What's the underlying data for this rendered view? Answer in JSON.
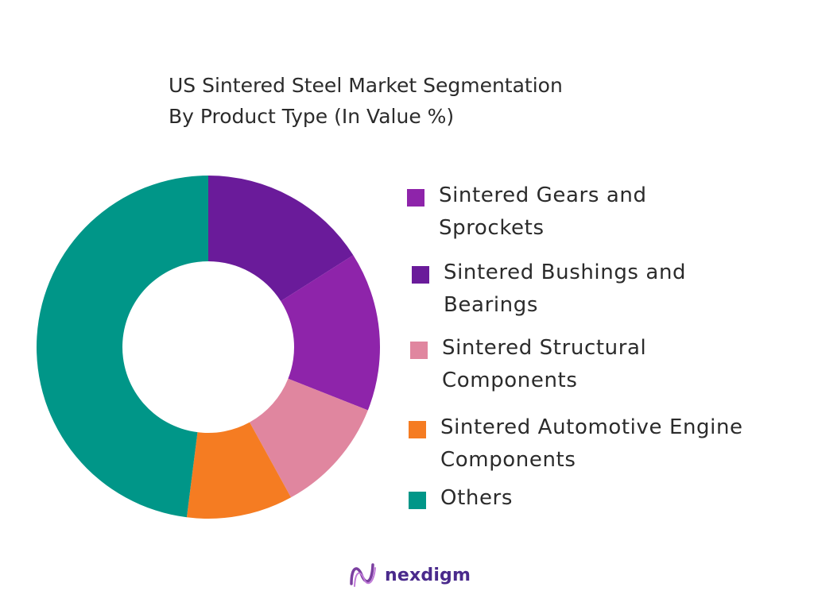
{
  "chart_data": {
    "type": "pie",
    "title_lines": [
      "US Sintered Steel Market Segmentation",
      "By Product Type (In Value %)"
    ],
    "categories": [
      "Sintered Gears and Sprockets",
      "Sintered Bushings and Bearings",
      "Sintered Structural Components",
      "Sintered Automotive Engine Components",
      "Others"
    ],
    "values": [
      15,
      16,
      11,
      10,
      48
    ],
    "colors": [
      "#8e24aa",
      "#6a1b9a",
      "#e0869f",
      "#f57c22",
      "#009688"
    ],
    "slice_order": [
      1,
      0,
      2,
      3,
      4
    ],
    "legend_placement": "right",
    "donut": true
  },
  "legend": {
    "items": [
      {
        "lines": [
          "Sintered Gears and",
          "Sprockets"
        ],
        "color": "#8e24aa"
      },
      {
        "lines": [
          "Sintered Bushings and",
          "Bearings"
        ],
        "color": "#6a1b9a"
      },
      {
        "lines": [
          "Sintered Structural",
          "Components"
        ],
        "color": "#e0869f"
      },
      {
        "lines": [
          "Sintered Automotive Engine",
          "Components"
        ],
        "color": "#f57c22"
      },
      {
        "lines": [
          "Others"
        ],
        "color": "#009688"
      }
    ]
  },
  "brand": {
    "name": "nexdigm",
    "logo_icon": "nexdigm-logo-icon"
  }
}
